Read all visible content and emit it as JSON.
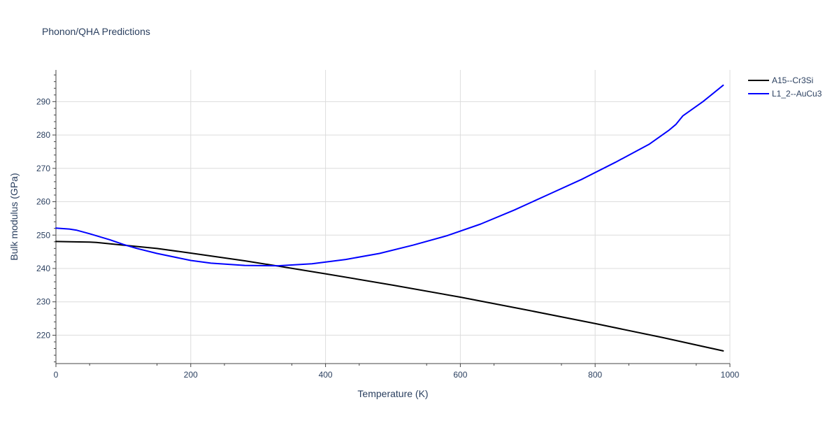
{
  "chart_data": {
    "type": "line",
    "title": "Phonon/QHA Predictions",
    "xlabel": "Temperature (K)",
    "ylabel": "Bulk modulus (GPa)",
    "xlim": [
      0,
      1000
    ],
    "ylim": [
      211.5,
      299.5
    ],
    "x_ticks": [
      0,
      200,
      400,
      600,
      800,
      1000
    ],
    "y_ticks": [
      220,
      230,
      240,
      250,
      260,
      270,
      280,
      290
    ],
    "x_tick_labels": [
      "0",
      "200",
      "400",
      "600",
      "800",
      "1000"
    ],
    "y_tick_labels": [
      "220",
      "230",
      "240",
      "250",
      "260",
      "270",
      "280",
      "290"
    ],
    "grid": true,
    "legend_position": "top-right",
    "series": [
      {
        "name": "A15--Cr3Si",
        "color": "#000000",
        "x": [
          0,
          20,
          50,
          60,
          100,
          150,
          200,
          280,
          330,
          400,
          500,
          600,
          700,
          800,
          900,
          990
        ],
        "y": [
          248.1,
          248.0,
          247.9,
          247.8,
          247.0,
          246.0,
          244.6,
          242.3,
          240.7,
          238.4,
          235.0,
          231.4,
          227.5,
          223.5,
          219.3,
          215.3
        ]
      },
      {
        "name": "L1_2--AuCu3",
        "color": "#0000ff",
        "x": [
          0,
          20,
          30,
          50,
          80,
          100,
          120,
          150,
          200,
          230,
          280,
          330,
          380,
          430,
          480,
          530,
          580,
          630,
          680,
          730,
          780,
          830,
          880,
          910,
          920,
          930,
          960,
          990
        ],
        "y": [
          252.1,
          251.8,
          251.5,
          250.4,
          248.6,
          247.2,
          246.0,
          244.5,
          242.4,
          241.6,
          240.9,
          240.8,
          241.4,
          242.7,
          244.5,
          247.0,
          249.8,
          253.3,
          257.5,
          262.1,
          266.7,
          271.8,
          277.2,
          281.5,
          283.2,
          285.7,
          290.0,
          294.9
        ]
      }
    ]
  }
}
